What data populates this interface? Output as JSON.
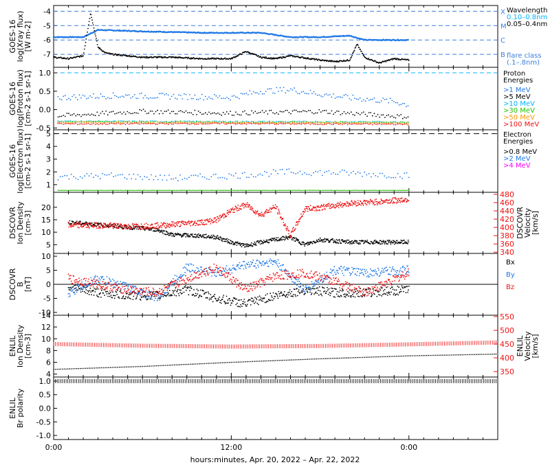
{
  "footer": {
    "time_axis_title": "hours:minutes, Apr. 20, 2022 – Apr. 22, 2022",
    "time_ticks": [
      "0:00",
      "12:00",
      "0:00"
    ]
  },
  "colors": {
    "black": "#000000",
    "blue": "#1e78e6",
    "cyan": "#00b4ff",
    "green": "#22c000",
    "orange": "#ff9900",
    "red": "#ee1111",
    "magenta": "#ff00ff",
    "dash": "#3a7fdc"
  },
  "chart_data": [
    {
      "type": "line",
      "panel": "xray",
      "ylabel": "GOES-16 log(Xray flux) [W m-2]",
      "ylim": [
        -7.9,
        -3.6
      ],
      "yticks": [
        "-4",
        "-5",
        "-6",
        "-7"
      ],
      "flare_classes": [
        {
          "label": "X",
          "level": -4
        },
        {
          "label": "M",
          "level": -5
        },
        {
          "label": "C",
          "level": -6
        },
        {
          "label": "B",
          "level": -7
        }
      ],
      "legend": {
        "title": "Wavelength",
        "items": [
          {
            "label": "0.10–0.8nm",
            "color": "#00b4ff"
          },
          {
            "label": "0.05–0.4nm",
            "color": "#000000"
          }
        ],
        "flare_class_label": "flare class",
        "flare_class_range": "(.1–.8nm)"
      },
      "series": [
        {
          "key": "long",
          "x": [
            0,
            1,
            2,
            2.5,
            3,
            3.5,
            4,
            5,
            6,
            8,
            10,
            12,
            13,
            14,
            15,
            16,
            18,
            19,
            20,
            20.5,
            21,
            22,
            23,
            24
          ],
          "values": [
            -7.2,
            -7.3,
            -7.1,
            -4.1,
            -6.5,
            -6.9,
            -7.0,
            -7.1,
            -7.2,
            -7.2,
            -7.3,
            -7.3,
            -6.8,
            -7.2,
            -7.3,
            -7.1,
            -7.4,
            -7.5,
            -7.4,
            -6.3,
            -7.2,
            -7.6,
            -7.3,
            -7.4
          ]
        },
        {
          "key": "short",
          "x": [
            0,
            2,
            3,
            6,
            10,
            14,
            16,
            18,
            20,
            21,
            22,
            24
          ],
          "values": [
            -5.8,
            -5.8,
            -5.3,
            -5.4,
            -5.5,
            -5.5,
            -5.8,
            -5.8,
            -5.7,
            -6.0,
            -6.0,
            -6.0
          ]
        }
      ]
    },
    {
      "type": "scatter",
      "panel": "proton",
      "ylabel": "GOES-16 log(Proton flux) [cm-2 s-1 sr-1]",
      "ylim": [
        -0.55,
        1.15
      ],
      "yticks": [
        "1.0",
        "0.5",
        "0.0",
        "-0.5"
      ],
      "legend": {
        "title": "Proton",
        "title2": "Energies",
        "items": [
          {
            "label": ">1 MeV",
            "color": "#1e78e6"
          },
          {
            "label": ">5 MeV",
            "color": "#000000"
          },
          {
            "label": ">10 MeV",
            "color": "#00b4ff"
          },
          {
            "label": ">30 MeV",
            "color": "#22c000"
          },
          {
            "label": ">50 MeV",
            "color": "#ff9900"
          },
          {
            "label": ">100 MeV",
            "color": "#ee1111"
          }
        ]
      },
      "series": [
        {
          "key": ">1",
          "x": [
            0,
            4,
            8,
            12,
            14,
            16,
            18,
            20,
            23,
            24
          ],
          "values": [
            0.32,
            0.38,
            0.36,
            0.33,
            0.5,
            0.54,
            0.42,
            0.32,
            0.22,
            0.12
          ]
        },
        {
          "key": ">5",
          "x": [
            0,
            6,
            12,
            18,
            24
          ],
          "values": [
            -0.18,
            -0.05,
            -0.1,
            -0.05,
            -0.2
          ]
        },
        {
          "key": ">10",
          "x": [
            0,
            12,
            24
          ],
          "values": [
            -0.32,
            -0.33,
            -0.34
          ]
        },
        {
          "key": ">30",
          "x": [
            0,
            12,
            24
          ],
          "values": [
            -0.33,
            -0.34,
            -0.35
          ]
        },
        {
          "key": ">50",
          "x": [
            0,
            12,
            24
          ],
          "values": [
            -0.35,
            -0.36,
            -0.37
          ]
        },
        {
          "key": ">100",
          "x": [
            0,
            12,
            24
          ],
          "values": [
            -0.39,
            -0.38,
            -0.4
          ]
        }
      ]
    },
    {
      "type": "scatter",
      "panel": "electron",
      "ylabel": "GOES-16 log(Electron flux) [cm-2 s-1 sr-1]",
      "ylim": [
        0.4,
        5.3
      ],
      "yticks": [
        "5",
        "4",
        "3",
        "2",
        "1"
      ],
      "legend": {
        "title": "Electron",
        "title2": "Energies",
        "items": [
          {
            "label": ">0.8 MeV",
            "color": "#000000"
          },
          {
            "label": ">2 MeV",
            "color": "#1e78e6"
          },
          {
            "label": ">4 MeV",
            "color": "#ff00ff"
          }
        ]
      },
      "series": [
        {
          "key": ">0.8",
          "x": [
            0,
            24
          ],
          "values": [
            5.0,
            5.0
          ]
        },
        {
          "key": ">2",
          "x": [
            0,
            4,
            8,
            12,
            16,
            20,
            24
          ],
          "values": [
            1.6,
            1.7,
            1.5,
            1.7,
            2.0,
            1.9,
            1.7
          ]
        },
        {
          "key": ">2_floor",
          "x": [
            0,
            24
          ],
          "values": [
            0.55,
            0.55
          ]
        }
      ]
    },
    {
      "type": "scatter",
      "panel": "dscovr_density",
      "ylabel": "DSCOVR Ion Density [cm-3]",
      "y2label": "DSCOVR Velocity [km/s]",
      "ylim": [
        1.5,
        26
      ],
      "yticks": [
        "20",
        "15",
        "10",
        "5"
      ],
      "y2lim": [
        337,
        485
      ],
      "y2ticks": [
        "480",
        "460",
        "440",
        "420",
        "400",
        "380",
        "360",
        "340"
      ],
      "series": [
        {
          "key": "density",
          "x": [
            1,
            3,
            5,
            7,
            8,
            10,
            11,
            12,
            13,
            14,
            16,
            17,
            18,
            20,
            24
          ],
          "values": [
            14,
            13,
            12,
            11,
            9,
            8.5,
            8,
            6,
            4.5,
            6,
            8,
            5,
            7,
            6,
            6
          ]
        },
        {
          "key": "velocity",
          "x": [
            1,
            3,
            5,
            7,
            9,
            10,
            11,
            12,
            13,
            14,
            15,
            16,
            17,
            18,
            20,
            22,
            24
          ],
          "values": [
            405,
            405,
            402,
            404,
            410,
            412,
            418,
            440,
            455,
            430,
            450,
            380,
            445,
            448,
            458,
            462,
            468
          ]
        }
      ]
    },
    {
      "type": "scatter",
      "panel": "dscovr_b",
      "ylabel": "DSCOVR B [nT]",
      "ylim": [
        -11,
        11
      ],
      "yticks": [
        "10",
        "5",
        "0",
        "-5",
        "-10"
      ],
      "legend": {
        "items": [
          {
            "label": "Bx",
            "color": "#000000"
          },
          {
            "label": "By",
            "color": "#1e78e6"
          },
          {
            "label": "Bz",
            "color": "#ee1111"
          }
        ]
      },
      "series": [
        {
          "key": "Bx",
          "x": [
            1,
            3,
            5,
            7,
            9,
            11,
            13,
            15,
            17,
            19,
            21,
            24
          ],
          "values": [
            -1,
            -3,
            -4,
            -4,
            -2,
            -5,
            -7,
            -4,
            -2,
            -3,
            -3,
            -2
          ]
        },
        {
          "key": "By",
          "x": [
            1,
            3,
            5,
            7,
            9,
            11,
            13,
            15,
            17,
            19,
            21,
            24
          ],
          "values": [
            -3,
            2,
            -1,
            -5,
            6,
            4,
            7,
            8,
            -2,
            5,
            4,
            5
          ]
        },
        {
          "key": "Bz",
          "x": [
            1,
            3,
            5,
            7,
            9,
            11,
            13,
            15,
            17,
            19,
            21,
            24
          ],
          "values": [
            2,
            0,
            -2,
            -3,
            2,
            6,
            -2,
            3,
            4,
            1,
            -3,
            4
          ]
        }
      ]
    },
    {
      "type": "line",
      "panel": "enlil_density",
      "ylabel": "ENLIL Ion Density [cm-3]",
      "y2label": "ENLIL Velocity [km/s]",
      "ylim": [
        3.5,
        14
      ],
      "yticks": [
        "14",
        "12",
        "10",
        "8",
        "6",
        "4"
      ],
      "y2lim": [
        330,
        555
      ],
      "y2ticks": [
        "550",
        "500",
        "450",
        "400",
        "350"
      ],
      "series": [
        {
          "key": "density",
          "x": [
            0,
            6,
            12,
            18,
            24,
            30
          ],
          "values": [
            4.8,
            5.3,
            6.0,
            6.6,
            7.1,
            7.4
          ]
        },
        {
          "key": "velocity",
          "x": [
            0,
            6,
            12,
            18,
            24,
            30
          ],
          "values": [
            450,
            444,
            441,
            443,
            449,
            456
          ]
        }
      ]
    },
    {
      "type": "line",
      "panel": "enlil_polarity",
      "ylabel": "ENLIL Br polarity",
      "ylim": [
        -1.15,
        1.15
      ],
      "yticks": [
        "1.0",
        "0.5",
        "0.0",
        "-0.5",
        "-1.0"
      ],
      "series": [
        {
          "key": "polarity",
          "x": [
            0,
            30
          ],
          "values": [
            1.0,
            1.0
          ]
        }
      ]
    }
  ]
}
